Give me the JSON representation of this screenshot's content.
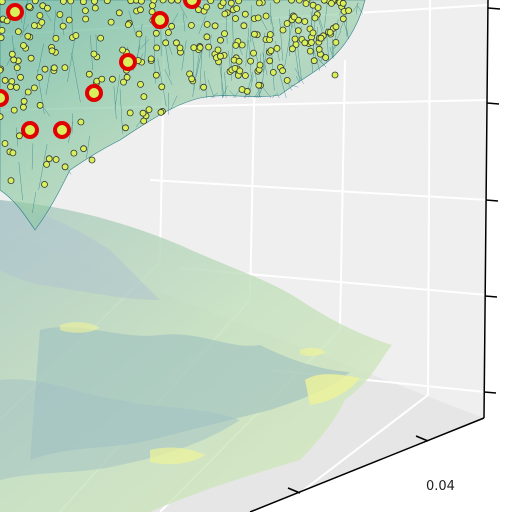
{
  "chart_data": {
    "type": "surface-3d",
    "title": "",
    "xlabel": "",
    "ylabel": "",
    "zlabel": "",
    "grid": true,
    "visible_tick_labels": [
      "0.04"
    ],
    "series": [
      {
        "kind": "surface",
        "colormap": "viridis",
        "alpha": 0.5
      },
      {
        "kind": "contour-projection",
        "colormap": "viridis",
        "alpha": 0.35
      },
      {
        "kind": "scatter-points",
        "color": "#d8f05a",
        "edge_color": "#333333"
      },
      {
        "kind": "highlighted-points",
        "color": "#e00000"
      }
    ],
    "colors": {
      "pane": "#efefef",
      "grid": "#ffffff",
      "surface_edge": "#2f7f8a",
      "surface_fill": "#7fc2a4",
      "contour_low": "#9cc3b7",
      "contour_mid": "#bfe0b8",
      "contour_high": "#eef39a"
    }
  }
}
